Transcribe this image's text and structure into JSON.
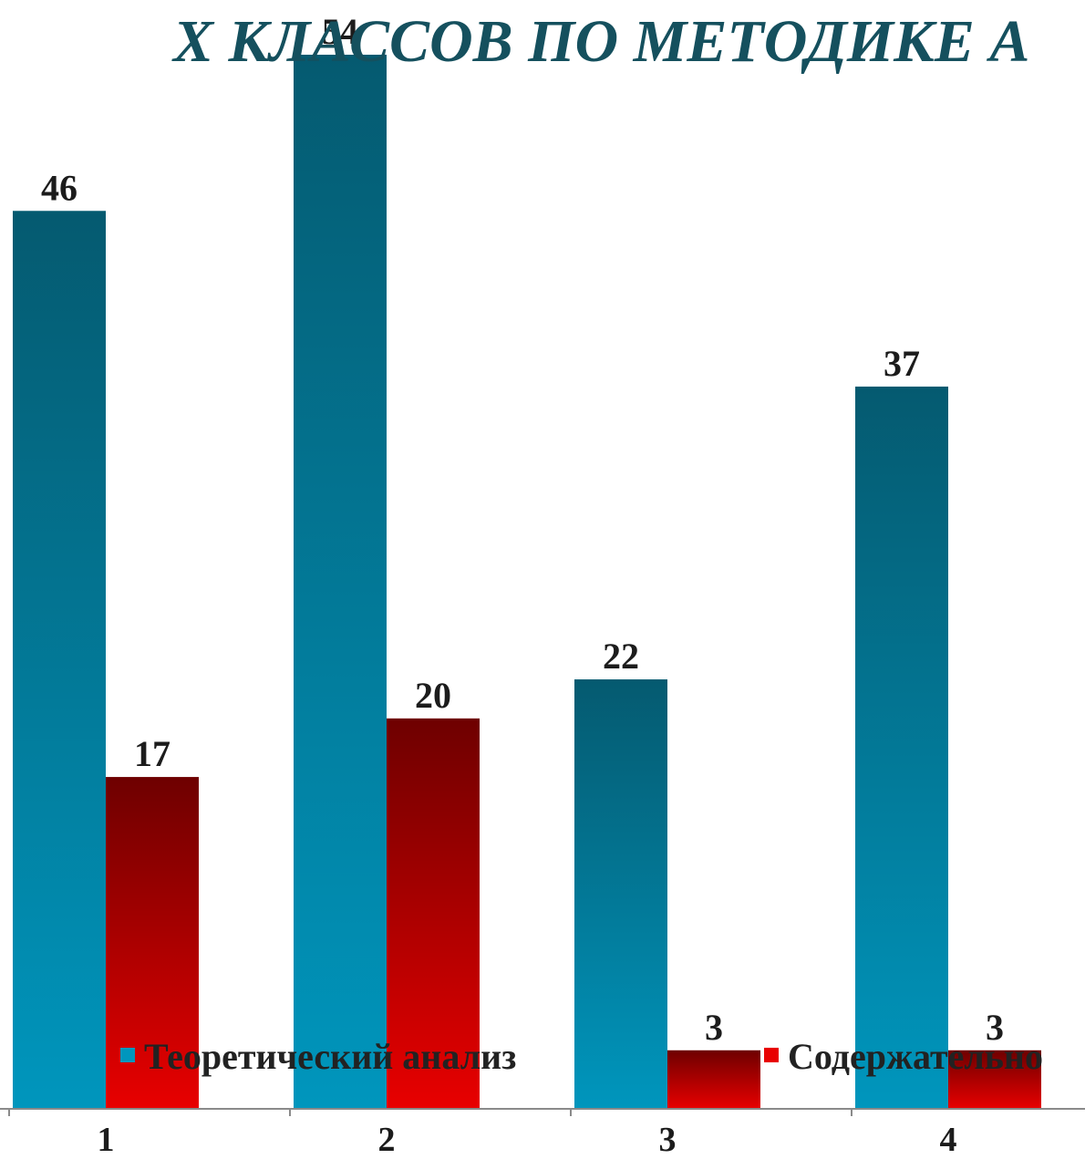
{
  "chart_data": {
    "type": "bar",
    "title": "Х КЛАССОВ ПО МЕТОДИКЕ А",
    "categories": [
      "1",
      "2",
      "3",
      "4"
    ],
    "series": [
      {
        "name": "Теоретический анализ",
        "values": [
          46,
          54,
          22,
          37
        ],
        "color": "#0096bd",
        "color_dark": "#055a70"
      },
      {
        "name": "Содержательно",
        "values": [
          17,
          20,
          3,
          3
        ],
        "color": "#e80000",
        "color_dark": "#6e0000"
      }
    ],
    "ylim": [
      0,
      54
    ],
    "grid": false,
    "legend_position": "bottom-inside",
    "data_labels": true
  }
}
